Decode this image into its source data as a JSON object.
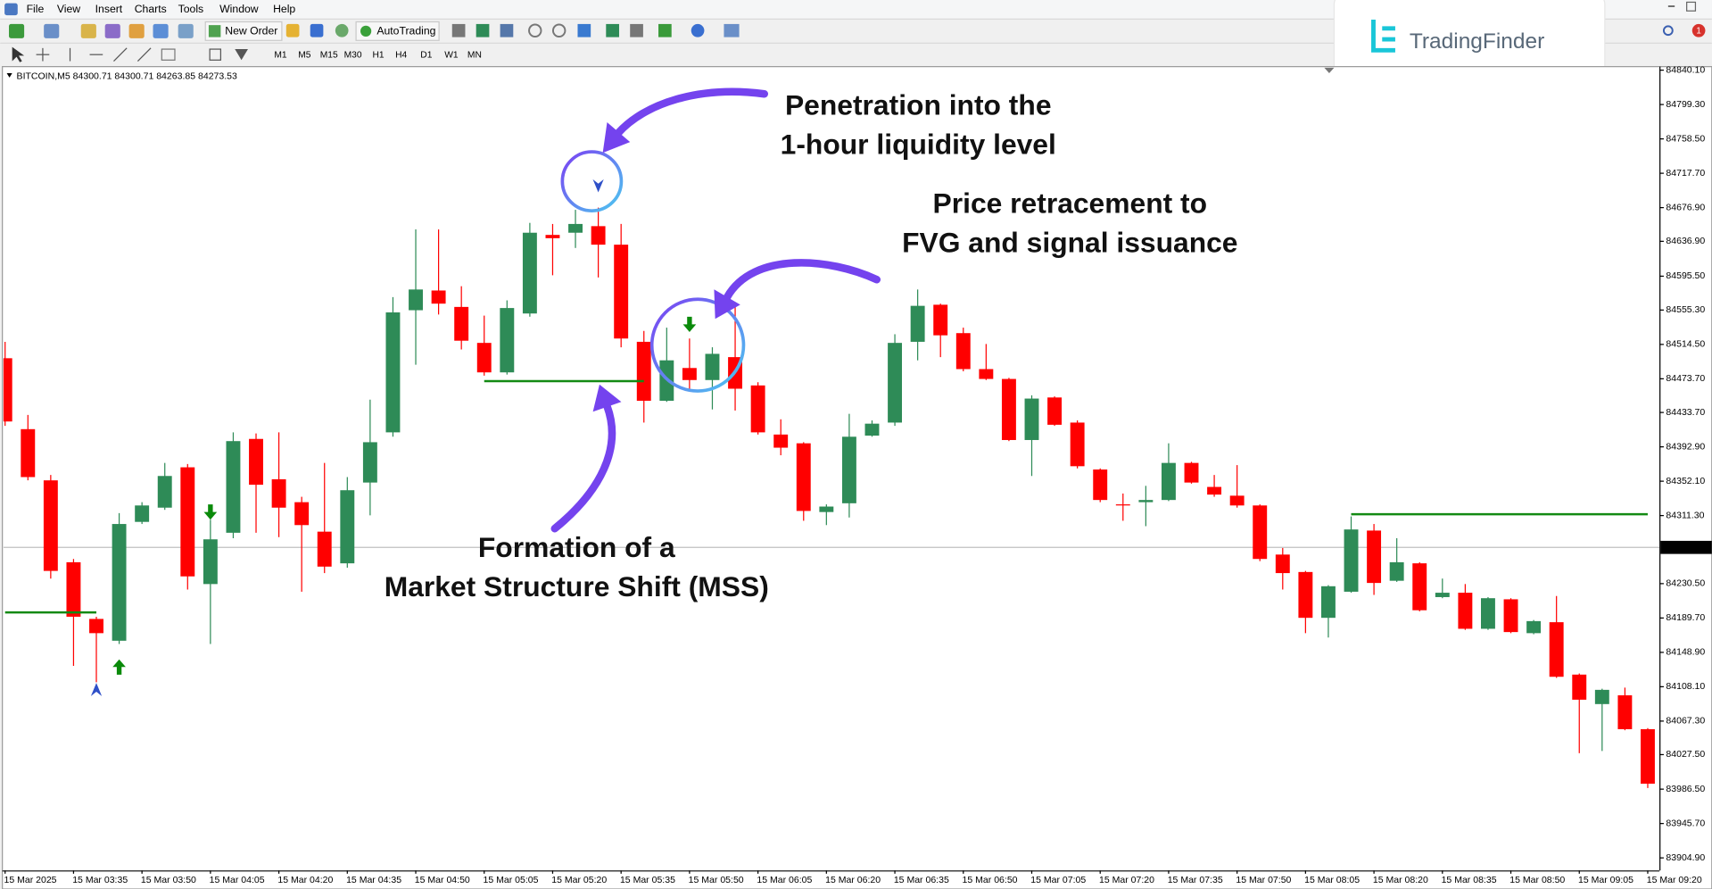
{
  "menu": [
    "File",
    "View",
    "Insert",
    "Charts",
    "Tools",
    "Window",
    "Help"
  ],
  "toolbar": {
    "new_order": "New Order",
    "auto_trading": "AutoTrading",
    "timeframes": [
      "M1",
      "M5",
      "M15",
      "M30",
      "H1",
      "H4",
      "D1",
      "W1",
      "MN"
    ]
  },
  "logo": "TradingFinder",
  "notifications": 1,
  "chart_data": {
    "type": "candlestick",
    "title": "BITCOIN,M5  84300.71 84300.71 84263.85 84273.53",
    "categories": [
      "15 Mar 2025",
      null,
      null,
      "15 Mar 03:35",
      null,
      null,
      "15 Mar 03:50",
      null,
      null,
      "15 Mar 04:05",
      null,
      null,
      "15 Mar 04:20",
      null,
      null,
      "15 Mar 04:35",
      null,
      null,
      "15 Mar 04:50",
      null,
      null,
      "15 Mar 05:05",
      null,
      null,
      "15 Mar 05:20",
      null,
      null,
      "15 Mar 05:35",
      null,
      null,
      "15 Mar 05:50",
      null,
      null,
      "15 Mar 06:05",
      null,
      null,
      "15 Mar 06:20",
      null,
      null,
      "15 Mar 06:35",
      null,
      null,
      "15 Mar 06:50",
      null,
      null,
      "15 Mar 07:05",
      null,
      null,
      "15 Mar 07:20",
      null,
      null,
      "15 Mar 07:35",
      null,
      null,
      "15 Mar 07:50",
      null,
      null,
      "15 Mar 08:05",
      null,
      null,
      "15 Mar 08:20",
      null,
      null,
      "15 Mar 08:35",
      null,
      null,
      "15 Mar 08:50",
      null,
      null,
      "15 Mar 09:05",
      null,
      null,
      "15 Mar 09:20"
    ],
    "open": [
      84498.1,
      84413.9,
      84353.1,
      84255.9,
      84188.6,
      84162.7,
      84303.8,
      84320.7,
      84368.6,
      84230.0,
      84290.9,
      84402.3,
      84354.4,
      84327.2,
      84292.2,
      84254.6,
      84350.5,
      84410.1,
      84555.1,
      84578.5,
      84559.0,
      84516.3,
      84481.3,
      84551.2,
      84644.5,
      84647.1,
      84654.9,
      84632.9,
      84517.6,
      84447.6,
      84486.5,
      84472.2,
      84499.4,
      84465.8,
      84407.5,
      84397.1,
      84315.5,
      84325.9,
      84406.2,
      84421.7,
      84517.6,
      84561.6,
      84527.9,
      84485.2,
      84473.5,
      84401.0,
      84451.5,
      84421.7,
      84366.0,
      84324.6,
      84327.2,
      84329.8,
      84373.8,
      84345.3,
      84334.9,
      84323.3,
      84265.0,
      84244.3,
      84189.9,
      84220.9,
      84293.5,
      84233.9,
      84254.6,
      84214.5,
      84219.7,
      84176.9,
      84211.9,
      84171.7,
      84184.7,
      84122.5,
      84087.5,
      84097.9,
      84057.7
    ],
    "high": [
      84517.6,
      84430.8,
      84359.5,
      84259.8,
      84191.2,
      84314.2,
      84327.2,
      84373.8,
      84372.5,
      84306.4,
      84410.1,
      84408.8,
      84410.1,
      84333.6,
      84373.8,
      84357.0,
      84448.9,
      84570.7,
      84651.0,
      84651.0,
      84583.6,
      84548.7,
      84566.8,
      84658.8,
      84657.5,
      84674.3,
      84676.9,
      84657.5,
      84530.5,
      84534.4,
      84521.5,
      84511.1,
      84564.2,
      84469.6,
      84425.6,
      84398.4,
      84324.6,
      84432.1,
      84424.3,
      84526.6,
      84579.7,
      84562.9,
      84534.4,
      84515.0,
      84474.8,
      84454.1,
      84452.8,
      84424.3,
      84367.3,
      84337.5,
      84346.6,
      84397.1,
      84375.1,
      84359.5,
      84371.2,
      84324.6,
      84272.8,
      84245.6,
      84228.7,
      84310.3,
      84301.3,
      84284.4,
      84255.9,
      84236.5,
      84230.0,
      84214.5,
      84213.2,
      84187.3,
      84215.8,
      84123.8,
      84105.7,
      84107.0,
      84059.0
    ],
    "low": [
      84417.8,
      84353.1,
      84236.5,
      84132.9,
      84113.4,
      84158.8,
      84301.3,
      84318.1,
      84223.5,
      84158.8,
      84284.4,
      84290.9,
      84285.7,
      84220.9,
      84243.0,
      84249.4,
      84311.6,
      84404.9,
      84490.4,
      84550.0,
      84508.5,
      84477.4,
      84478.7,
      84547.4,
      84596.6,
      84629.0,
      84594.0,
      84511.1,
      84421.7,
      84446.3,
      84461.9,
      84437.3,
      84436.0,
      84407.5,
      84382.9,
      84305.1,
      84300.0,
      84309.0,
      84404.9,
      84417.8,
      84495.6,
      84499.4,
      84482.6,
      84472.2,
      84399.7,
      84358.3,
      84417.8,
      84367.3,
      84327.2,
      84305.1,
      84298.7,
      84328.5,
      84349.2,
      84333.6,
      84320.7,
      84257.2,
      84223.5,
      84171.7,
      84166.5,
      84219.7,
      84217.1,
      84232.6,
      84197.6,
      84213.2,
      84175.6,
      84175.6,
      84171.7,
      84170.4,
      84118.6,
      84029.2,
      84031.8,
      84056.4,
      83987.8
    ],
    "close": [
      84423.0,
      84357.0,
      84245.6,
      84191.2,
      84171.7,
      84301.3,
      84323.3,
      84358.3,
      84239.1,
      84283.1,
      84399.7,
      84347.9,
      84320.7,
      84300.0,
      84250.7,
      84341.4,
      84398.4,
      84552.5,
      84579.7,
      84562.9,
      84518.9,
      84481.3,
      84557.7,
      84647.1,
      84640.6,
      84657.5,
      84632.9,
      84521.5,
      84447.6,
      84495.6,
      84472.2,
      84503.3,
      84461.9,
      84410.1,
      84391.9,
      84316.8,
      84322.0,
      84404.9,
      84420.4,
      84516.3,
      84560.3,
      84525.3,
      84485.2,
      84473.5,
      84401.0,
      84450.2,
      84419.1,
      84369.9,
      84329.8,
      84323.3,
      84329.8,
      84373.8,
      84350.5,
      84336.2,
      84323.3,
      84259.8,
      84243.0,
      84189.9,
      84227.4,
      84294.8,
      84231.3,
      84255.9,
      84198.9,
      84219.7,
      84176.9,
      84213.2,
      84173.0,
      84186.0,
      84119.9,
      84092.7,
      84104.4,
      84057.7,
      83993.0
    ],
    "up_color": "#2e8b57",
    "down_color": "#ff0000",
    "ylim": [
      83890,
      84843
    ],
    "yticks": [
      {
        "value": 84840.1,
        "label": "84840.10"
      },
      {
        "value": 84799.3,
        "label": "84799.30"
      },
      {
        "value": 84758.5,
        "label": "84758.50"
      },
      {
        "value": 84717.7,
        "label": "84717.70"
      },
      {
        "value": 84676.9,
        "label": "84676.90"
      },
      {
        "value": 84636.9,
        "label": "84636.90"
      },
      {
        "value": 84595.5,
        "label": "84595.50"
      },
      {
        "value": 84555.3,
        "label": "84555.30"
      },
      {
        "value": 84514.5,
        "label": "84514.50"
      },
      {
        "value": 84473.7,
        "label": "84473.70"
      },
      {
        "value": 84433.7,
        "label": "84433.70"
      },
      {
        "value": 84392.9,
        "label": "84392.90"
      },
      {
        "value": 84352.1,
        "label": "84352.10"
      },
      {
        "value": 84311.3,
        "label": "84311.30"
      },
      {
        "value": 84230.5,
        "label": "84230.50"
      },
      {
        "value": 84189.7,
        "label": "84189.70"
      },
      {
        "value": 84148.9,
        "label": "84148.90"
      },
      {
        "value": 84108.1,
        "label": "84108.10"
      },
      {
        "value": 84067.3,
        "label": "84067.30"
      },
      {
        "value": 84027.5,
        "label": "84027.50"
      },
      {
        "value": 83986.5,
        "label": "83986.50"
      },
      {
        "value": 83945.7,
        "label": "83945.70"
      },
      {
        "value": 83904.9,
        "label": "83904.90"
      }
    ],
    "grid": false,
    "bid": 84273.53,
    "bid_color": "#c0c0c0",
    "levels": [
      {
        "value": 84196.3,
        "from": 0,
        "to": 4
      },
      {
        "value": 84470.9,
        "from": 21,
        "to": 28
      },
      {
        "value": 84312.9,
        "from": 59,
        "to": 72
      }
    ],
    "level_color": "#138a13",
    "markers": [
      {
        "x": 5,
        "price": 84131.5,
        "shape": "arrow-up",
        "color": "#0a8a0a"
      },
      {
        "x": 4,
        "price": 84104.8,
        "shape": "pointer-up",
        "color": "#2f50c8"
      },
      {
        "x": 9,
        "price": 84315.5,
        "shape": "arrow-down",
        "color": "#0a8a0a"
      },
      {
        "x": 30,
        "price": 84538.3,
        "shape": "arrow-down",
        "color": "#0a8a0a"
      },
      {
        "x": 26,
        "price": 84702.8,
        "shape": "pointer-down",
        "color": "#2f50c8"
      }
    ],
    "annotations": [
      [
        "Penetration into the",
        "1-hour liquidity level"
      ],
      [
        "Price retracement to",
        "FVG and signal issuance"
      ],
      [
        "Formation of a",
        "Market Structure Shift (MSS)"
      ]
    ]
  }
}
